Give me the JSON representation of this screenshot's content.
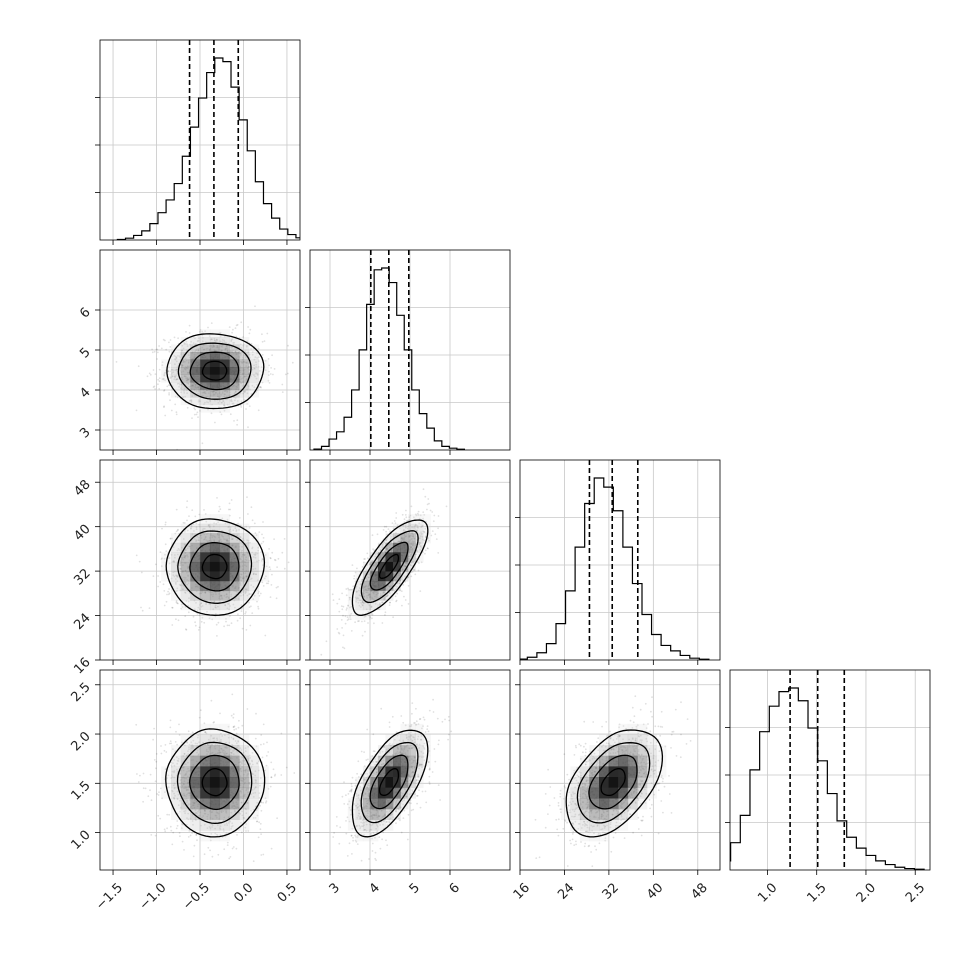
{
  "chart_data": {
    "type": "corner",
    "title": "",
    "grid": true,
    "parameters": [
      {
        "range": [
          -1.65,
          0.65
        ],
        "ticks": [
          -1.5,
          -1.0,
          -0.5,
          0.0,
          0.5
        ],
        "tick_labels": [
          "−1.5",
          "−1.0",
          "−0.5",
          "0.0",
          "0.5"
        ],
        "quantiles": [
          -0.62,
          -0.34,
          -0.06
        ],
        "mean": -0.33,
        "std": 0.28,
        "hist": [
          0.003,
          0.01,
          0.025,
          0.05,
          0.09,
          0.15,
          0.22,
          0.31,
          0.46,
          0.62,
          0.78,
          0.92,
          1.0,
          0.98,
          0.84,
          0.66,
          0.49,
          0.32,
          0.2,
          0.12,
          0.06,
          0.03,
          0.012,
          0.005
        ]
      },
      {
        "range": [
          2.5,
          7.5
        ],
        "ticks": [
          3,
          4,
          5,
          6
        ],
        "tick_labels": [
          "3",
          "4",
          "5",
          "6"
        ],
        "quantiles": [
          4.02,
          4.47,
          4.97
        ],
        "mean": 4.48,
        "std": 0.47,
        "hist": [
          0.005,
          0.02,
          0.06,
          0.1,
          0.18,
          0.33,
          0.55,
          0.8,
          0.99,
          1.0,
          0.92,
          0.74,
          0.55,
          0.33,
          0.2,
          0.12,
          0.05,
          0.02,
          0.01,
          0.004
        ]
      },
      {
        "range": [
          16,
          52
        ],
        "ticks": [
          16,
          24,
          32,
          40,
          48
        ],
        "tick_labels": [
          "16",
          "24",
          "32",
          "40",
          "48"
        ],
        "quantiles": [
          28.5,
          32.6,
          37.2
        ],
        "mean": 32.8,
        "std": 4.3,
        "hist": [
          0.005,
          0.015,
          0.04,
          0.09,
          0.2,
          0.38,
          0.62,
          0.86,
          1.0,
          0.95,
          0.82,
          0.62,
          0.42,
          0.25,
          0.14,
          0.08,
          0.05,
          0.025,
          0.01,
          0.004
        ]
      },
      {
        "range": [
          0.62,
          2.65
        ],
        "ticks": [
          1.0,
          1.5,
          2.0,
          2.5
        ],
        "tick_labels": [
          "1.0",
          "1.5",
          "2.0",
          "2.5"
        ],
        "quantiles": [
          1.23,
          1.51,
          1.78
        ],
        "mean": 1.51,
        "std": 0.27,
        "hist": [
          0.01,
          0.05,
          0.15,
          0.3,
          0.55,
          0.76,
          0.9,
          0.98,
          1.0,
          0.93,
          0.78,
          0.6,
          0.42,
          0.27,
          0.18,
          0.12,
          0.08,
          0.05,
          0.03,
          0.015,
          0.008,
          0.004
        ]
      }
    ],
    "correlations": [
      [
        1.0,
        0.0,
        0.0,
        0.0
      ],
      [
        0.0,
        1.0,
        0.75,
        0.6
      ],
      [
        0.0,
        0.75,
        1.0,
        0.45
      ],
      [
        0.0,
        0.6,
        0.45,
        1.0
      ]
    ],
    "contour_levels": [
      0.5,
      1.0,
      1.5,
      2.0
    ],
    "xlabels": [
      "",
      "",
      "",
      ""
    ],
    "ylabels": [
      "",
      "",
      "",
      ""
    ]
  }
}
